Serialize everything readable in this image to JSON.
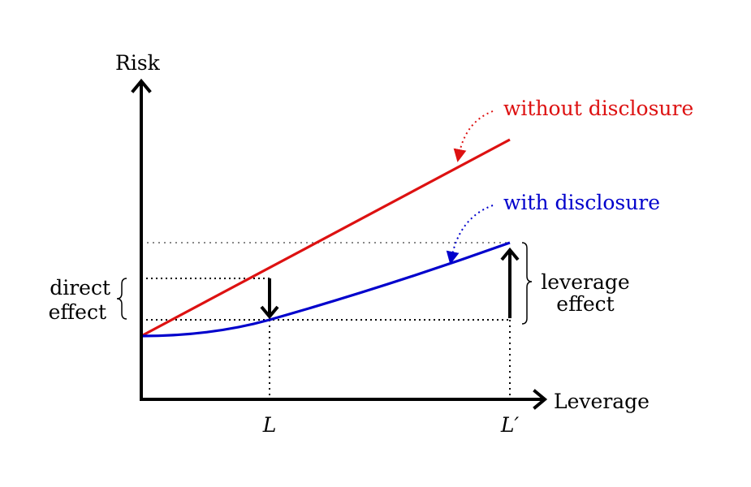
{
  "axes": {
    "y_label": "Risk",
    "x_label": "Leverage",
    "x_tick_L": "L",
    "x_tick_Lprime": "L′"
  },
  "curves": {
    "without": {
      "label": "without disclosure",
      "color": "#dd1111"
    },
    "with": {
      "label": "with disclosure",
      "color": "#0000cc"
    }
  },
  "annotations": {
    "direct_effect": [
      "direct",
      "effect"
    ],
    "leverage_effect": [
      "leverage",
      "effect"
    ]
  }
}
